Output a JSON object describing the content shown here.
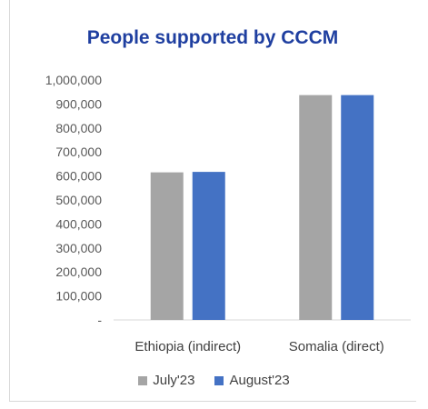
{
  "colors": {
    "title": "#1f3fa0",
    "july": "#a5a5a5",
    "august": "#4472c4",
    "axis_text": "#595959"
  },
  "chart_data": {
    "type": "bar",
    "title": "People supported by CCCM",
    "categories": [
      "Ethiopia (indirect)",
      "Somalia (direct)"
    ],
    "series": [
      {
        "name": "July'23",
        "values": [
          615000,
          937000
        ]
      },
      {
        "name": "August'23",
        "values": [
          617000,
          937000
        ]
      }
    ],
    "ylim": [
      0,
      1000000
    ],
    "yticks": [
      "-",
      "100,000",
      "200,000",
      "300,000",
      "400,000",
      "500,000",
      "600,000",
      "700,000",
      "800,000",
      "900,000",
      "1,000,000"
    ],
    "grid": false,
    "legend": "bottom"
  }
}
